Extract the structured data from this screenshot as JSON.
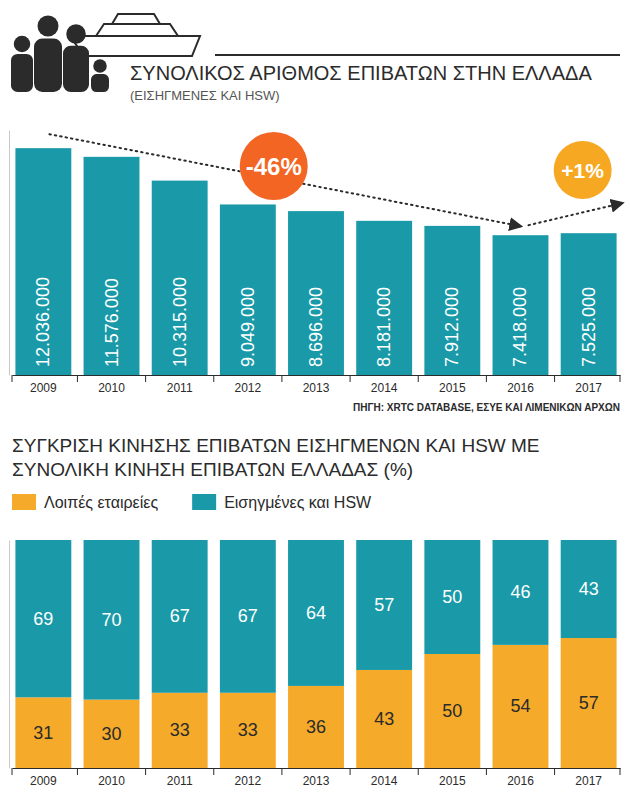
{
  "chart_data": [
    {
      "type": "bar",
      "title": "ΣΥΝΟΛΙΚΟΣ ΑΡΙΘΜΟΣ ΕΠΙΒΑΤΩΝ ΣΤΗΝ ΕΛΛΑΔΑ",
      "subtitle": "(ΕΙΣΗΓΜΕΝΕΣ ΚΑΙ HSW)",
      "categories": [
        "2009",
        "2010",
        "2011",
        "2012",
        "2013",
        "2014",
        "2015",
        "2016",
        "2017"
      ],
      "values": [
        12036000,
        11576000,
        10315000,
        9049000,
        8696000,
        8181000,
        7912000,
        7418000,
        7525000
      ],
      "value_labels": [
        "12.036.000",
        "11.576.000",
        "10.315.000",
        "9.049.000",
        "8.696.000",
        "8.181.000",
        "7.912.000",
        "7.418.000",
        "7.525.000"
      ],
      "color": "#1a9aa8",
      "data_labels": true,
      "ylim": [
        0,
        13000000
      ],
      "yticks": [],
      "tick_labels": "x",
      "annotations": [
        {
          "text": "-46%",
          "color": "#f26522"
        },
        {
          "text": "+1%",
          "color": "#f7a823"
        }
      ],
      "source": "ΠΗΓΗ: XRTC DATABASE, ΕΣΥΕ ΚΑΙ ΛΙΜΕΝΙΚΩΝ ΑΡΧΩΝ"
    },
    {
      "type": "bar",
      "stacked": true,
      "title": "ΣΥΓΚΡΙΣΗ ΚΙΝΗΣΗΣ ΕΠΙΒΑΤΩΝ ΕΙΣΗΓΜΕΝΩΝ ΚΑΙ HSW ΜΕ ΣΥΝΟΛΙΚΗ ΚΙΝΗΣΗ ΕΠΙΒΑΤΩΝ ΕΛΛΑΔΑΣ (%)",
      "categories": [
        "2009",
        "2010",
        "2011",
        "2012",
        "2013",
        "2014",
        "2015",
        "2016",
        "2017"
      ],
      "series": [
        {
          "name": "Λοιπές εταιρείες",
          "color": "#f5aa29",
          "values": [
            31,
            30,
            33,
            33,
            36,
            43,
            50,
            54,
            57
          ]
        },
        {
          "name": "Εισηγμένες και HSW",
          "color": "#1a9aa8",
          "values": [
            69,
            70,
            67,
            67,
            64,
            57,
            50,
            46,
            43
          ]
        }
      ],
      "data_labels": true,
      "ylim": [
        0,
        100
      ],
      "yticks": [],
      "tick_labels": "x",
      "legend": "top-left"
    }
  ]
}
